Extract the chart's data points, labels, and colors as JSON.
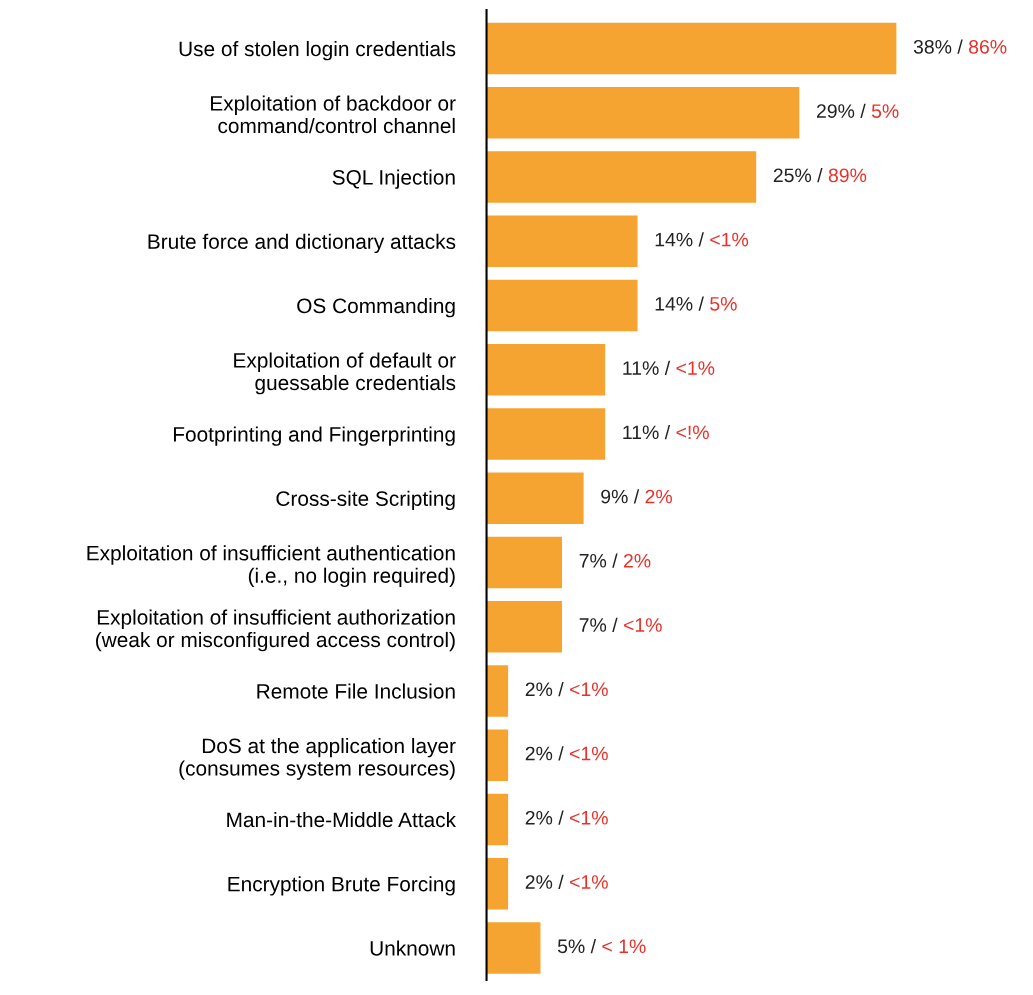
{
  "chart_data": {
    "type": "bar",
    "orientation": "horizontal",
    "categories": [
      "Use of stolen login credentials",
      "Exploitation of backdoor or\ncommand/control channel",
      "SQL Injection",
      "Brute force and dictionary attacks",
      "OS Commanding",
      "Exploitation of default or\nguessable credentials",
      "Footprinting and Fingerprinting",
      "Cross-site Scripting",
      "Exploitation of insufficient authentication\n(i.e., no login required)",
      "Exploitation of insufficient authorization\n(weak or misconfigured access control)",
      "Remote File Inclusion",
      "DoS at the application layer\n(consumes system resources)",
      "Man-in-the-Middle Attack",
      "Encryption Brute Forcing",
      "Unknown"
    ],
    "values": [
      38,
      29,
      25,
      14,
      14,
      11,
      11,
      9,
      7,
      7,
      2,
      2,
      2,
      2,
      5
    ],
    "color": "#f5a431",
    "value_labels": [
      "38% / 86%",
      "29% / 5%",
      "25% / 89%",
      "14% / <1%",
      "14% / 5%",
      "11% / <1%",
      "11% / <!%",
      "9% / 2%",
      "7% / 2%",
      "7% / <1%",
      "2% / <1%",
      "2% / <1%",
      "2% / <1%",
      "2% / <1%",
      "5% / < 1%"
    ],
    "grid": false
  }
}
